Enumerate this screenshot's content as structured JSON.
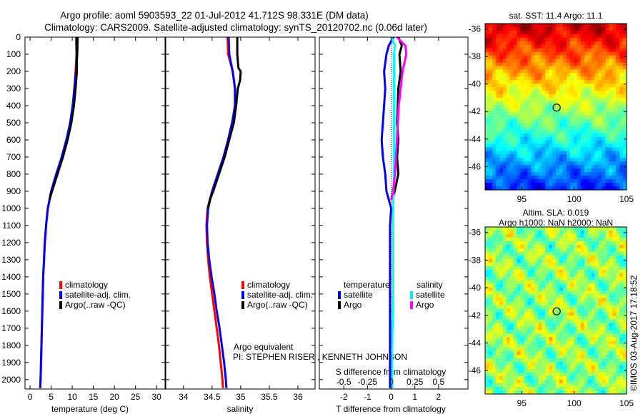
{
  "title": {
    "line1": "Argo profile: aoml 5903593_22 01-Jul-2012 41.712S 98.331E (DM data)",
    "line2": "Climatology: CARS2009. Satellite-adjusted climatology: synTS_20120702.nc (0.06d later)"
  },
  "annotations": {
    "argo_equivalent": "Argo equivalent",
    "pi": "PI: STEPHEN RISER , KENNETH JOHNSON",
    "watermark": "©IMOS 03-Aug-2017 17:18:52"
  },
  "colors": {
    "climatology": "#ff0000",
    "satellite": "#0000ff",
    "argo": "#000000",
    "s_satellite": "#00ffff",
    "s_argo": "#ff00ff"
  },
  "chart_data": [
    {
      "type": "line",
      "title": "",
      "xlabel": "temperature (deg C)",
      "ylabel": "",
      "xlim": [
        -1.2,
        32
      ],
      "ylim": [
        2055,
        0
      ],
      "xticks": [
        0,
        5,
        10,
        15,
        20,
        25,
        30
      ],
      "yticks": [
        0,
        100,
        200,
        300,
        400,
        500,
        600,
        700,
        800,
        900,
        1000,
        1100,
        1200,
        1300,
        1400,
        1500,
        1600,
        1700,
        1800,
        1900,
        2000
      ],
      "legend": [
        "climatology",
        "satellite-adj. clim.",
        "Argo(..raw -QC)"
      ],
      "legend_placement": "lower-center",
      "series": [
        {
          "name": "climatology",
          "color": "#ff0000",
          "depth": [
            0,
            100,
            200,
            300,
            400,
            500,
            600,
            700,
            800,
            900,
            1000,
            1100,
            1200,
            1300,
            1400,
            1500,
            1600,
            1800,
            2000,
            2050
          ],
          "values": [
            10.9,
            11.0,
            10.8,
            10.5,
            10.2,
            9.6,
            8.8,
            7.7,
            6.4,
            5.1,
            4.2,
            3.8,
            3.5,
            3.3,
            3.1,
            3.0,
            2.9,
            2.7,
            2.5,
            2.4
          ]
        },
        {
          "name": "satellite-adj. clim.",
          "color": "#0000ff",
          "depth": [
            0,
            100,
            200,
            300,
            400,
            500,
            600,
            700,
            800,
            900,
            1000,
            1100,
            1200,
            1300,
            1400,
            1500,
            1600,
            1800,
            2000,
            2050
          ],
          "values": [
            11.3,
            11.2,
            10.9,
            10.5,
            10.1,
            9.5,
            8.6,
            7.5,
            6.2,
            5.0,
            4.2,
            3.8,
            3.5,
            3.3,
            3.1,
            3.0,
            2.9,
            2.7,
            2.5,
            2.4
          ]
        },
        {
          "name": "Argo(..raw -QC)",
          "color": "#000000",
          "depth": [
            0,
            100,
            200,
            300,
            400,
            500,
            600,
            700,
            800,
            900,
            950
          ],
          "values": [
            11.1,
            11.1,
            11.1,
            10.8,
            10.4,
            9.8,
            8.9,
            7.8,
            6.5,
            5.2,
            4.6
          ]
        }
      ]
    },
    {
      "type": "line",
      "xlabel": "salinity",
      "xlim": [
        33.69,
        36.3
      ],
      "ylim": [
        2055,
        0
      ],
      "xticks": [
        34,
        34.5,
        35,
        35.5,
        36
      ],
      "legend": [
        "climatology",
        "satellite-adj. clim.",
        "Argo(..raw -QC)"
      ],
      "legend_placement": "lower-center",
      "series": [
        {
          "name": "climatology",
          "color": "#ff0000",
          "depth": [
            0,
            100,
            150,
            200,
            300,
            400,
            500,
            600,
            700,
            800,
            900,
            1000,
            1100,
            1200,
            1300,
            1400,
            1500,
            1600,
            1700,
            1800,
            1900,
            2000,
            2050
          ],
          "values": [
            34.77,
            34.78,
            34.82,
            34.86,
            34.9,
            34.9,
            34.85,
            34.78,
            34.7,
            34.6,
            34.5,
            34.42,
            34.4,
            34.41,
            34.43,
            34.46,
            34.5,
            34.54,
            34.58,
            34.62,
            34.65,
            34.68,
            34.69
          ]
        },
        {
          "name": "satellite-adj. clim.",
          "color": "#0000ff",
          "depth": [
            0,
            100,
            200,
            300,
            400,
            500,
            600,
            700,
            800,
            900,
            1000,
            1100,
            1200,
            1300,
            1400,
            1500,
            1600,
            1700,
            1800,
            1900,
            2000,
            2050
          ],
          "values": [
            34.79,
            34.8,
            34.86,
            34.9,
            34.9,
            34.85,
            34.78,
            34.7,
            34.6,
            34.5,
            34.43,
            34.41,
            34.42,
            34.45,
            34.49,
            34.54,
            34.58,
            34.63,
            34.67,
            34.71,
            34.74,
            34.75
          ]
        },
        {
          "name": "Argo(..raw -QC)",
          "color": "#000000",
          "depth": [
            0,
            100,
            180,
            200,
            250,
            300,
            400,
            500,
            600,
            700,
            800,
            900,
            950,
            1000
          ],
          "values": [
            34.94,
            34.94,
            34.96,
            35.0,
            34.99,
            34.95,
            34.92,
            34.88,
            34.8,
            34.72,
            34.62,
            34.52,
            34.46,
            34.43
          ]
        }
      ]
    },
    {
      "type": "line",
      "xlabel": "T difference from climatology",
      "x2label": "S difference from climatology",
      "xlim": [
        -3.03,
        3.24
      ],
      "ylim": [
        2055,
        0
      ],
      "xticks": [
        -2,
        -1,
        0,
        1,
        2
      ],
      "x2ticks": [
        -0.5,
        -0.25,
        0,
        0.25,
        0.5
      ],
      "legend_headers": [
        "temperature",
        "salinity"
      ],
      "legend": [
        "satellite",
        "Argo",
        "satellite",
        "Argo"
      ],
      "legend_placement": "lower-center",
      "series": [
        {
          "name": "T satellite",
          "color": "#0000ff",
          "depth": [
            0,
            50,
            100,
            200,
            300,
            400,
            500,
            600,
            700,
            800,
            900,
            950,
            1000,
            1100,
            1300,
            1600,
            2000,
            2050
          ],
          "values": [
            0.1,
            -0.1,
            -0.2,
            -0.3,
            -0.25,
            -0.3,
            -0.35,
            -0.4,
            -0.35,
            -0.25,
            -0.2,
            -0.1,
            0.0,
            -0.05,
            -0.05,
            -0.05,
            -0.05,
            -0.05
          ]
        },
        {
          "name": "T Argo",
          "color": "#000000",
          "depth": [
            0,
            50,
            100,
            200,
            300,
            400,
            500,
            600,
            700,
            800,
            900,
            950
          ],
          "values": [
            0.3,
            0.45,
            0.35,
            0.4,
            0.3,
            0.28,
            0.25,
            0.3,
            0.25,
            0.3,
            0.15,
            0.05
          ]
        },
        {
          "name": "S satellite",
          "color": "#00ffff",
          "depth": [
            0,
            50,
            100,
            200,
            400,
            600,
            800,
            1000,
            1200,
            1500,
            1800,
            2050
          ],
          "values": [
            0.0,
            0.04,
            0.03,
            0.03,
            0.03,
            0.03,
            0.03,
            0.02,
            0.02,
            0.02,
            0.01,
            0.01
          ]
        },
        {
          "name": "S Argo",
          "color": "#ff00ff",
          "depth": [
            0,
            50,
            100,
            200,
            300,
            400,
            500,
            600,
            700,
            800,
            900,
            950
          ],
          "values": [
            0.06,
            0.15,
            0.16,
            0.12,
            0.1,
            0.08,
            0.07,
            0.06,
            0.05,
            0.04,
            0.02,
            0.0
          ]
        }
      ]
    },
    {
      "type": "heatmap",
      "title": "sat. SST: 11.4 Argo: 11.1",
      "xlim": [
        91.5,
        105
      ],
      "ylim": [
        -47.7,
        -35.6
      ],
      "xticks": [
        95,
        100,
        105
      ],
      "yticks": [
        -36,
        -38,
        -40,
        -42,
        -44,
        -46
      ],
      "marker": {
        "lon": 98.331,
        "lat": -41.712
      }
    },
    {
      "type": "heatmap",
      "title_line1": "Altim. SLA: 0.019",
      "title_line2": "Argo h1000: NaN h2000: NaN",
      "xlim": [
        91.5,
        105
      ],
      "ylim": [
        -47.7,
        -35.6
      ],
      "xticks": [
        95,
        100,
        105
      ],
      "yticks": [
        -36,
        -38,
        -40,
        -42,
        -44,
        -46
      ],
      "marker": {
        "lon": 98.331,
        "lat": -41.712
      }
    }
  ]
}
